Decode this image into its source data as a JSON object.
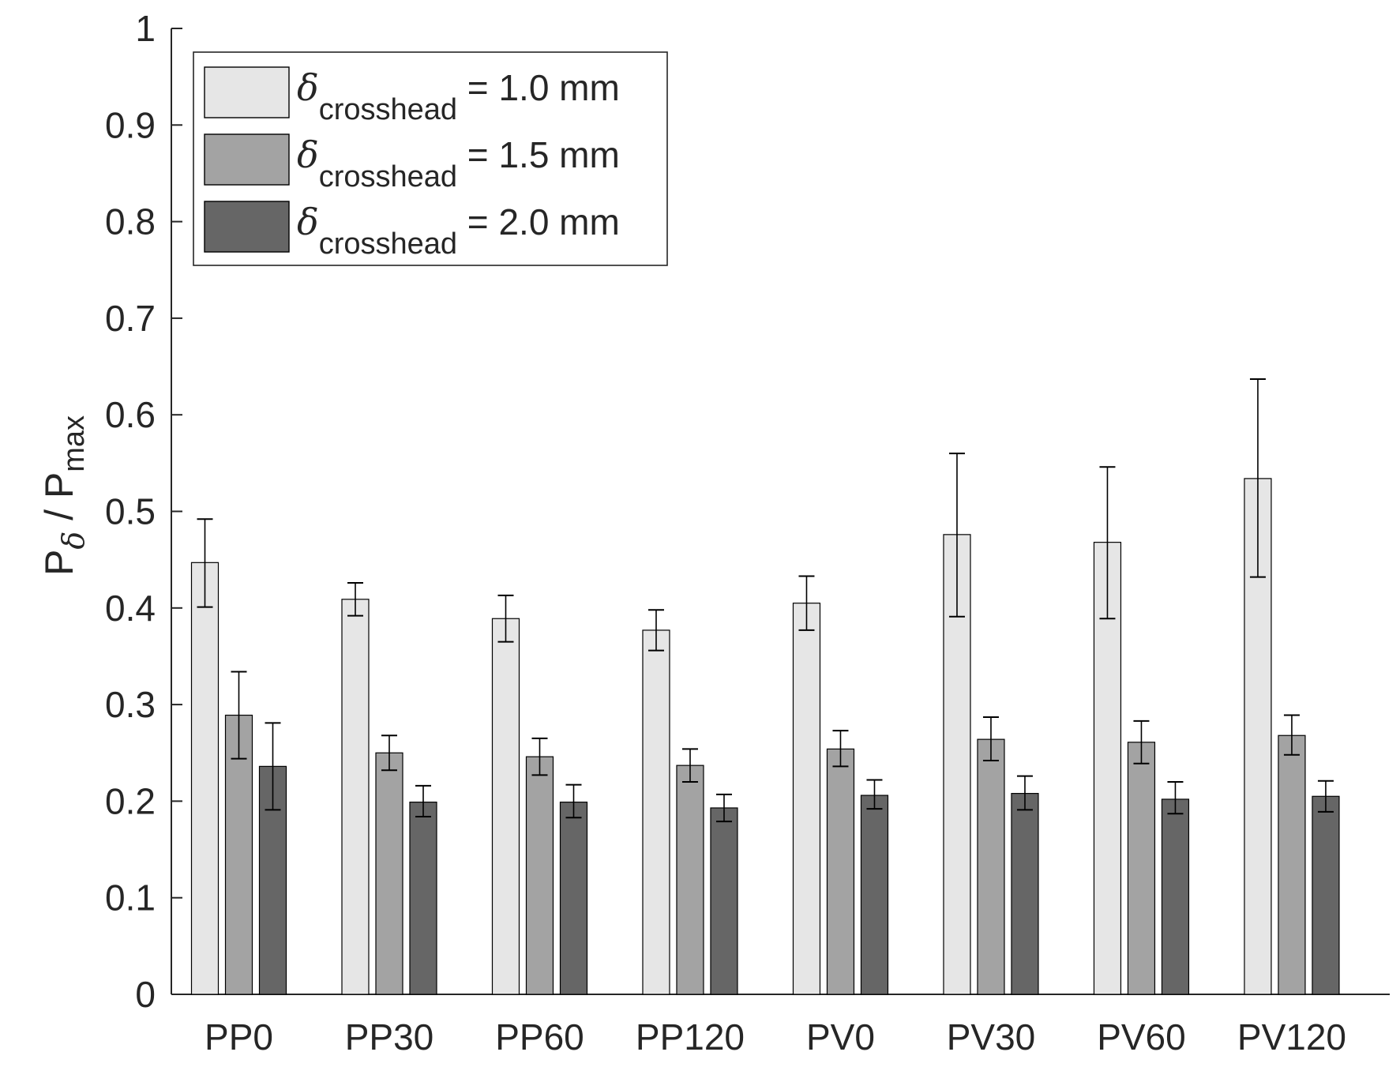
{
  "chart_data": {
    "type": "bar",
    "categories": [
      "PP0",
      "PP30",
      "PP60",
      "PP120",
      "PV0",
      "PV30",
      "PV60",
      "PV120"
    ],
    "series": [
      {
        "name_symbol": "δ",
        "name_subscript": "crosshead",
        "name_suffix": " = 1.0 mm",
        "color": "#e6e6e6",
        "values": [
          0.447,
          0.409,
          0.389,
          0.377,
          0.405,
          0.476,
          0.468,
          0.534
        ],
        "err_low": [
          0.401,
          0.392,
          0.365,
          0.356,
          0.377,
          0.391,
          0.389,
          0.432
        ],
        "err_high": [
          0.492,
          0.426,
          0.413,
          0.398,
          0.433,
          0.56,
          0.546,
          0.637
        ]
      },
      {
        "name_symbol": "δ",
        "name_subscript": "crosshead",
        "name_suffix": " = 1.5 mm",
        "color": "#a3a3a3",
        "values": [
          0.289,
          0.25,
          0.246,
          0.237,
          0.254,
          0.264,
          0.261,
          0.268
        ],
        "err_low": [
          0.244,
          0.232,
          0.227,
          0.22,
          0.236,
          0.242,
          0.239,
          0.248
        ],
        "err_high": [
          0.334,
          0.268,
          0.265,
          0.254,
          0.273,
          0.287,
          0.283,
          0.289
        ]
      },
      {
        "name_symbol": "δ",
        "name_subscript": "crosshead",
        "name_suffix": " = 2.0 mm",
        "color": "#666666",
        "values": [
          0.236,
          0.199,
          0.199,
          0.193,
          0.206,
          0.208,
          0.202,
          0.205
        ],
        "err_low": [
          0.191,
          0.184,
          0.183,
          0.179,
          0.192,
          0.191,
          0.187,
          0.189
        ],
        "err_high": [
          0.281,
          0.216,
          0.217,
          0.207,
          0.222,
          0.226,
          0.22,
          0.221
        ]
      }
    ],
    "ylabel": {
      "main": "P",
      "sub_symbol": "δ",
      "sep": " / P",
      "sub2": "max"
    },
    "xlabel": "",
    "ylim": [
      0,
      1
    ],
    "yticks": [
      0,
      0.1,
      0.2,
      0.3,
      0.4,
      0.5,
      0.6,
      0.7,
      0.8,
      0.9,
      1
    ],
    "ytick_labels": [
      "0",
      "0.1",
      "0.2",
      "0.3",
      "0.4",
      "0.5",
      "0.6",
      "0.7",
      "0.8",
      "0.9",
      "1"
    ],
    "grid": false,
    "legend_position": "top-left"
  }
}
